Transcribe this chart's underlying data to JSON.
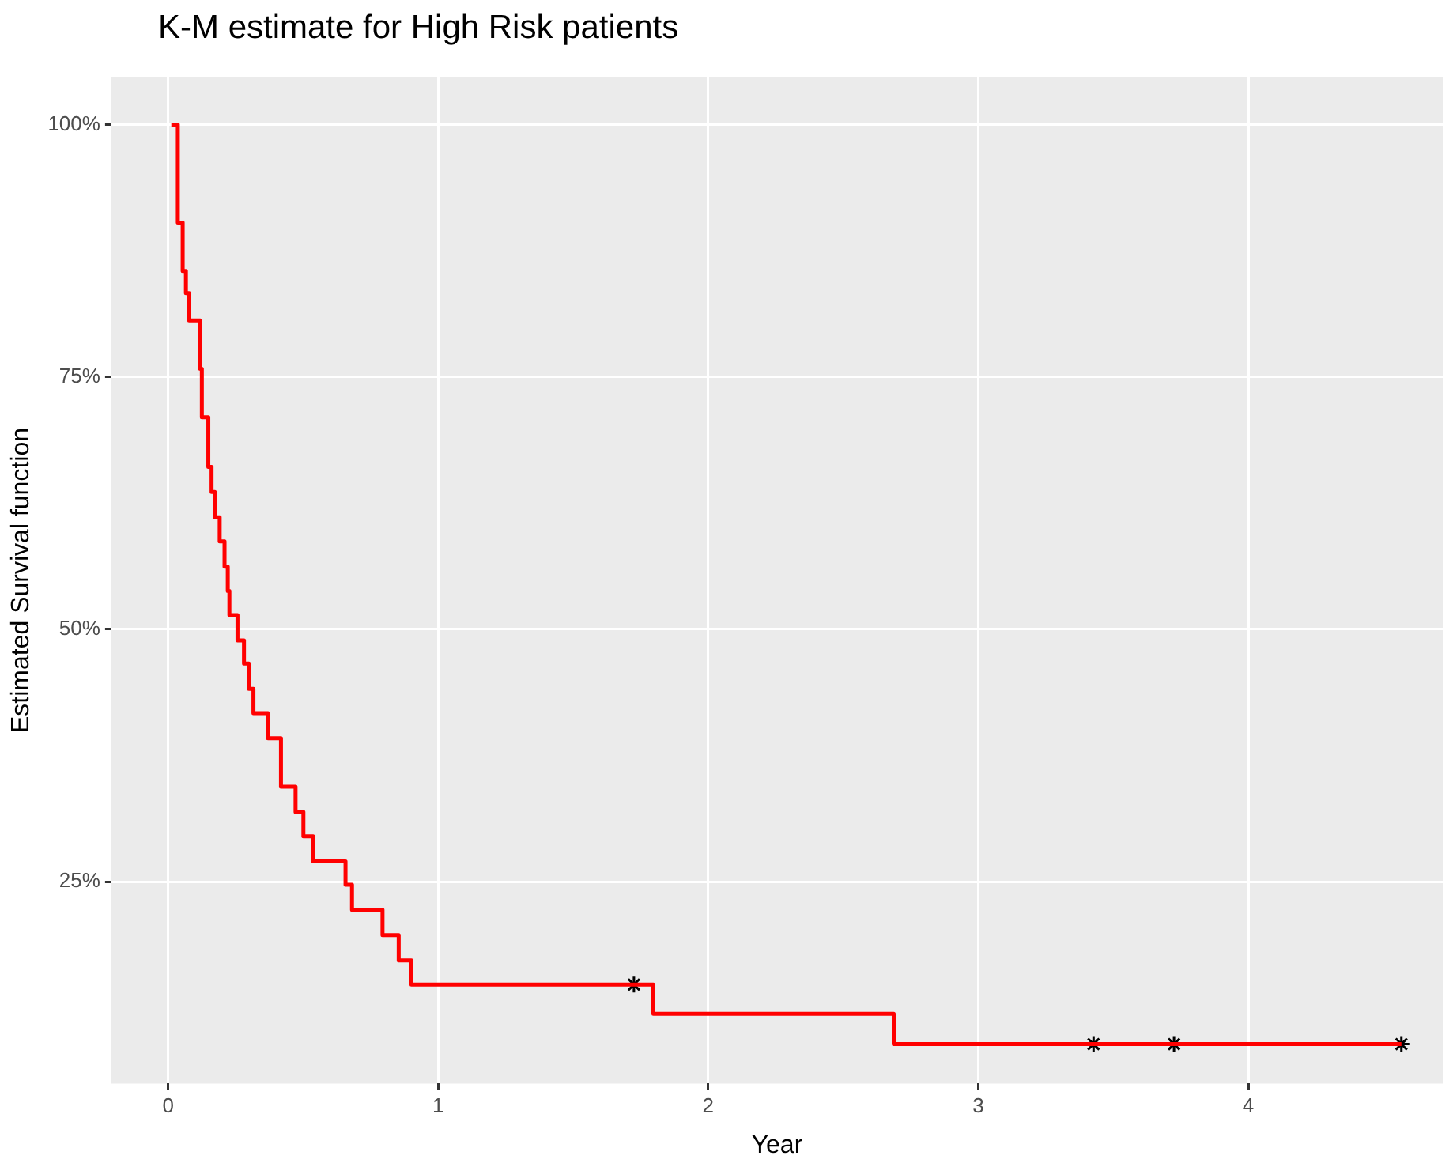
{
  "chart_data": {
    "type": "step",
    "title": "K-M estimate for High Risk patients",
    "xlabel": "Year",
    "ylabel": "Estimated Survival function",
    "xlim": [
      -0.21,
      4.72
    ],
    "xticks": [
      0,
      1,
      2,
      3,
      4
    ],
    "ylim": [
      5,
      104.7
    ],
    "yticks": [
      {
        "value": 25,
        "label": "25%"
      },
      {
        "value": 50,
        "label": "50%"
      },
      {
        "value": 75,
        "label": "75%"
      },
      {
        "value": 100,
        "label": "100%"
      }
    ],
    "grid": true,
    "legend": false,
    "series": [
      {
        "color": "#ff0000",
        "marker": "none",
        "x": [
          0.012,
          0.036,
          0.054,
          0.066,
          0.078,
          0.119,
          0.125,
          0.149,
          0.161,
          0.173,
          0.191,
          0.209,
          0.221,
          0.227,
          0.257,
          0.281,
          0.299,
          0.316,
          0.37,
          0.418,
          0.472,
          0.501,
          0.537,
          0.657,
          0.681,
          0.794,
          0.854,
          0.901,
          1.797,
          2.687,
          4.567
        ],
        "values": [
          100,
          90.3,
          85.5,
          83.3,
          80.6,
          75.8,
          71.0,
          66.1,
          63.6,
          61.1,
          58.7,
          56.2,
          53.8,
          51.4,
          48.9,
          46.6,
          44.1,
          41.7,
          39.2,
          34.4,
          31.9,
          29.5,
          27.0,
          24.7,
          22.2,
          19.7,
          17.2,
          14.8,
          11.9,
          8.9,
          8.9
        ]
      },
      {
        "type": "scatter",
        "color": "#000000",
        "marker": "cross",
        "x": [
          1.725,
          3.427,
          3.725,
          4.567
        ],
        "values": [
          14.8,
          8.9,
          8.9,
          8.9
        ]
      }
    ]
  }
}
